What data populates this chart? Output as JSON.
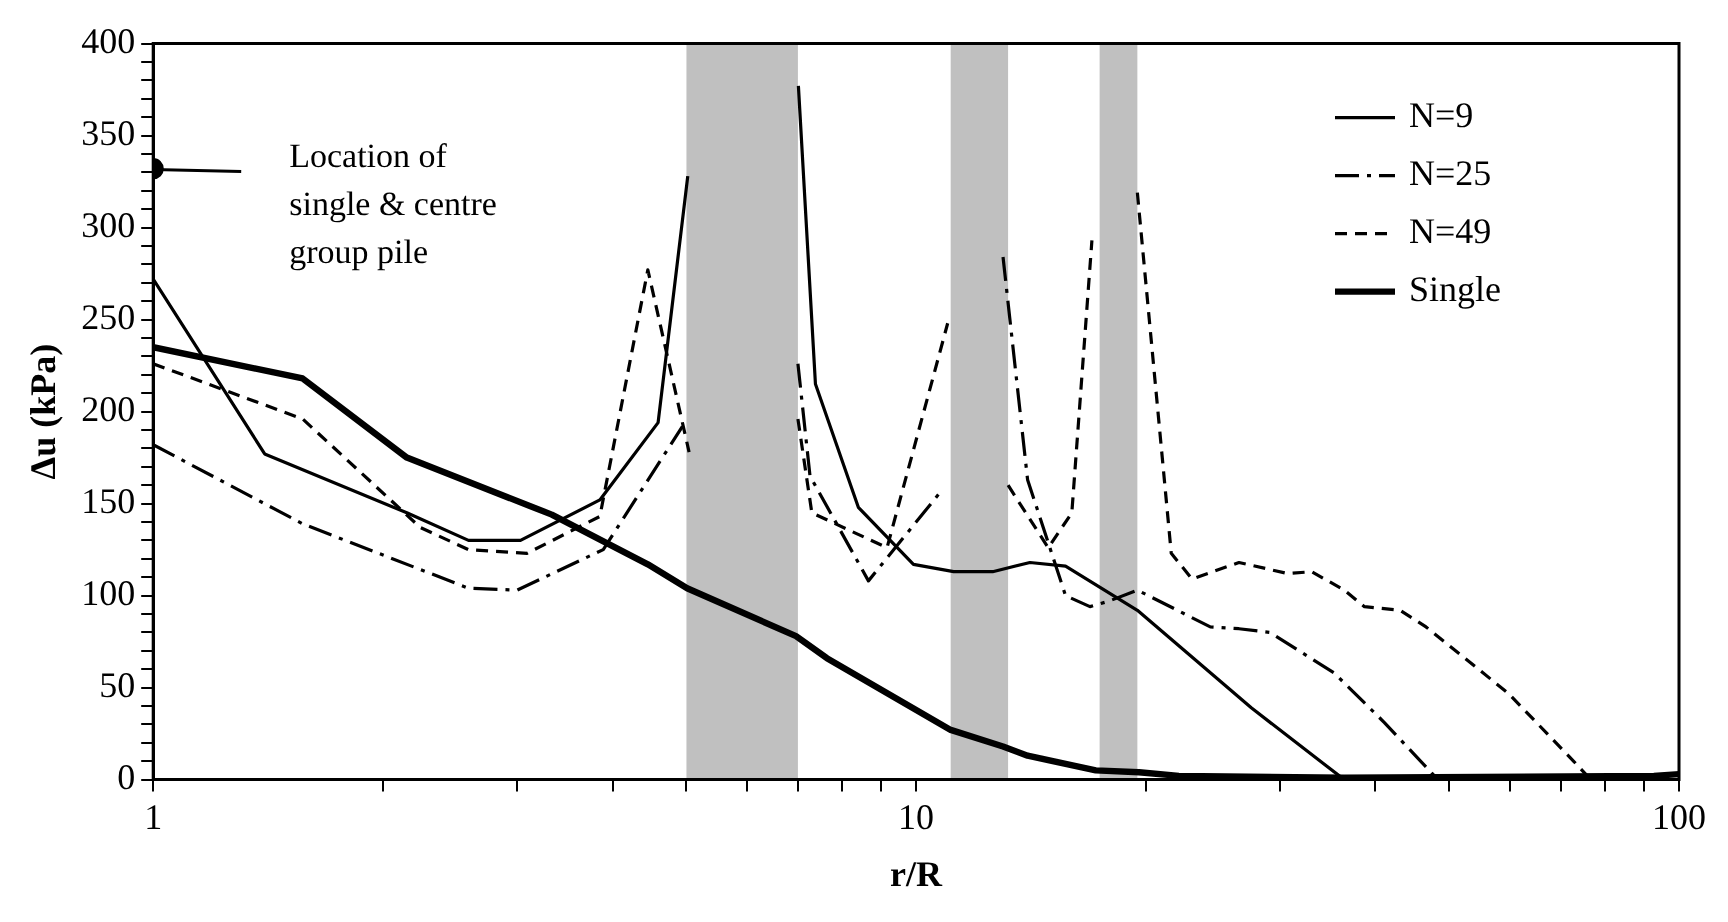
{
  "chart_data": {
    "type": "line",
    "xlabel": "r/R",
    "ylabel": "Δu (kPa)",
    "log": "x",
    "xlim": [
      1,
      100
    ],
    "xticks": [
      1,
      {
        "value": 2,
        "label": null
      },
      {
        "value": 3,
        "label": null
      },
      {
        "value": 4,
        "label": null
      },
      {
        "value": 5,
        "label": null
      },
      {
        "value": 6,
        "label": null
      },
      {
        "value": 7,
        "label": null
      },
      {
        "value": 8,
        "label": null
      },
      {
        "value": 9,
        "label": null
      },
      10,
      {
        "value": 20,
        "label": null
      },
      {
        "value": 30,
        "label": null
      },
      {
        "value": 40,
        "label": null
      },
      {
        "value": 50,
        "label": null
      },
      {
        "value": 60,
        "label": null
      },
      {
        "value": 70,
        "label": null
      },
      {
        "value": 80,
        "label": null
      },
      {
        "value": 90,
        "label": null
      },
      100
    ],
    "ylim": [
      0,
      400
    ],
    "yticks": [
      0,
      {
        "value": 10,
        "label": null
      },
      {
        "value": 20,
        "label": null
      },
      {
        "value": 30,
        "label": null
      },
      {
        "value": 40,
        "label": null
      },
      50,
      {
        "value": 60,
        "label": null
      },
      {
        "value": 70,
        "label": null
      },
      {
        "value": 80,
        "label": null
      },
      {
        "value": 90,
        "label": null
      },
      100,
      {
        "value": 110,
        "label": null
      },
      {
        "value": 120,
        "label": null
      },
      {
        "value": 130,
        "label": null
      },
      {
        "value": 140,
        "label": null
      },
      150,
      {
        "value": 160,
        "label": null
      },
      {
        "value": 170,
        "label": null
      },
      {
        "value": 180,
        "label": null
      },
      {
        "value": 190,
        "label": null
      },
      200,
      {
        "value": 210,
        "label": null
      },
      {
        "value": 220,
        "label": null
      },
      {
        "value": 230,
        "label": null
      },
      {
        "value": 240,
        "label": null
      },
      250,
      {
        "value": 260,
        "label": null
      },
      {
        "value": 270,
        "label": null
      },
      {
        "value": 280,
        "label": null
      },
      {
        "value": 290,
        "label": null
      },
      300,
      {
        "value": 310,
        "label": null
      },
      {
        "value": 320,
        "label": null
      },
      {
        "value": 330,
        "label": null
      },
      {
        "value": 340,
        "label": null
      },
      350,
      {
        "value": 360,
        "label": null
      },
      {
        "value": 370,
        "label": null
      },
      {
        "value": 380,
        "label": null
      },
      {
        "value": 390,
        "label": null
      },
      400
    ],
    "grid": false,
    "legend": "top right",
    "marker": "none",
    "bands": [
      {
        "axis": "x",
        "from": 5,
        "to": 7,
        "color": "#c0c0c0"
      },
      {
        "axis": "x",
        "from": 11.1,
        "to": 13.2,
        "color": "#c0c0c0"
      },
      {
        "axis": "x",
        "from": 17.4,
        "to": 19.5,
        "color": "#c0c0c0"
      }
    ],
    "annotations": [
      "Location of\nsingle & centre\ngroup pile"
    ],
    "series": [
      {
        "name": "N=9",
        "color": "#000000",
        "line_style": "solid",
        "x": [
          1,
          1.4,
          2.15,
          2.59,
          3.03,
          3.85,
          4.59,
          5.02,
          6,
          7.01,
          7.38,
          8.4,
          9.92,
          11.2,
          12.6,
          14.1,
          15.7,
          19.5,
          27.5,
          36.4,
          100
        ],
        "values": [
          272,
          177,
          145,
          130,
          130,
          152,
          194,
          328,
          null,
          377,
          215,
          148,
          117,
          113,
          113,
          118,
          116,
          92,
          39,
          0,
          0
        ]
      },
      {
        "name": "N=25",
        "color": "#000000",
        "line_style": "dashdot",
        "x": [
          1,
          1.57,
          2.59,
          3.0,
          3.89,
          4.94,
          6,
          7.0,
          7.26,
          8.66,
          10.7,
          12,
          13.0,
          14.0,
          15.7,
          16.9,
          17.9,
          19.5,
          24.3,
          26.5,
          29.1,
          35.3,
          41.1,
          48.3,
          100
        ],
        "values": [
          182,
          139,
          104,
          103,
          125,
          192,
          null,
          226,
          165,
          108,
          155,
          null,
          284,
          163,
          100,
          94,
          97,
          103,
          83,
          82,
          80,
          58,
          31,
          0,
          0
        ]
      },
      {
        "name": "N=49",
        "color": "#000000",
        "line_style": "dashed",
        "x": [
          1,
          1.57,
          2.24,
          2.59,
          3.09,
          3.85,
          4.45,
          5.04,
          6,
          7.0,
          7.3,
          9.16,
          11.0,
          12,
          13.2,
          14.9,
          16.0,
          17.0,
          18,
          19.5,
          21.6,
          23.0,
          26.5,
          30.7,
          33.0,
          36.4,
          38.7,
          43.1,
          46.6,
          59.7,
          72.0,
          76.6,
          100
        ],
        "values": [
          226,
          196,
          137,
          125,
          123,
          143,
          277,
          178,
          null,
          196,
          145,
          126,
          248,
          null,
          160,
          126,
          145,
          293,
          null,
          319,
          123,
          109,
          118,
          112,
          113,
          103,
          94,
          92,
          83,
          47,
          12,
          0,
          0
        ]
      },
      {
        "type": "scatter",
        "color": "#000000",
        "marker": "circle",
        "x": [
          1
        ],
        "values": [
          332
        ]
      },
      {
        "name": "Single",
        "color": "#000000",
        "line_style": "solid",
        "x": [
          1,
          1.57,
          2.15,
          3.33,
          4.45,
          5.01,
          6.96,
          7.64,
          11.1,
          13.0,
          14.0,
          17.2,
          19.6,
          22.1,
          36.4,
          92.7,
          100
        ],
        "values": [
          235,
          218,
          175,
          144,
          117,
          104,
          78,
          66,
          27,
          18,
          13,
          5,
          4,
          2,
          1,
          2,
          3
        ]
      }
    ]
  }
}
